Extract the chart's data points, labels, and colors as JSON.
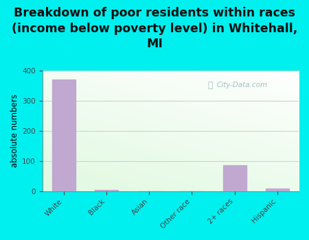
{
  "title": "Breakdown of poor residents within races\n(income below poverty level) in Whitehall,\nMI",
  "categories": [
    "White",
    "Black",
    "Asian",
    "Other race",
    "2+ races",
    "Hispanic"
  ],
  "values": [
    370,
    5,
    0,
    0,
    85,
    8
  ],
  "bar_color": "#c0a8d0",
  "background_color": "#00f0f0",
  "ylabel": "absolute numbers",
  "ylim": [
    0,
    400
  ],
  "yticks": [
    0,
    100,
    200,
    300,
    400
  ],
  "title_fontsize": 12.5,
  "axis_label_fontsize": 8.5,
  "tick_fontsize": 7.5,
  "watermark": "City-Data.com",
  "grid_color": "#c8d8c0",
  "gradient_top": "#f8fff8",
  "gradient_bottom": "#d8f0d0"
}
